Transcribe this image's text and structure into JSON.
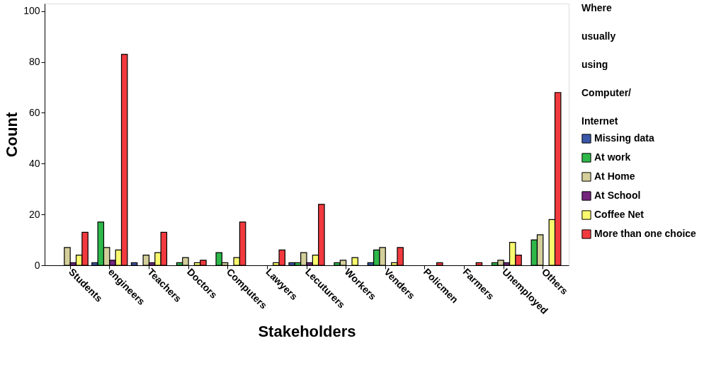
{
  "chart_data": {
    "type": "bar",
    "xlabel": "Stakeholders",
    "ylabel": "Count",
    "legend_title": "Where usually using Computer/ Internet",
    "categories": [
      "Students",
      "engineers",
      "Teachers",
      "Doctors",
      "Computers",
      "Lawyers",
      "Lecuturers",
      "Workers",
      "Venders",
      "Policmen",
      "Farmers",
      "Unemployed",
      "Others"
    ],
    "series": [
      {
        "name": "Missing data",
        "color": "#3a57a8",
        "values": [
          null,
          1,
          1,
          null,
          null,
          null,
          1,
          null,
          1,
          null,
          null,
          null,
          null
        ]
      },
      {
        "name": "At work",
        "color": "#2eb84a",
        "values": [
          null,
          17,
          null,
          1,
          5,
          null,
          1,
          1,
          6,
          null,
          null,
          1,
          10
        ]
      },
      {
        "name": "At Home",
        "color": "#d4cf9a",
        "values": [
          7,
          7,
          4,
          3,
          1,
          null,
          5,
          2,
          7,
          null,
          null,
          2,
          12
        ]
      },
      {
        "name": "At School",
        "color": "#74257e",
        "values": [
          1,
          2,
          1,
          null,
          null,
          null,
          1,
          null,
          null,
          null,
          null,
          1,
          null
        ]
      },
      {
        "name": "Coffee Net",
        "color": "#fafa6e",
        "values": [
          4,
          6,
          5,
          1,
          3,
          1,
          4,
          3,
          1,
          null,
          null,
          9,
          18
        ]
      },
      {
        "name": "More than one choice",
        "color": "#f23a3e",
        "values": [
          13,
          83,
          13,
          2,
          17,
          6,
          24,
          null,
          7,
          1,
          1,
          4,
          68
        ]
      }
    ],
    "ylim": [
      0,
      103
    ],
    "yticks": [
      0,
      20,
      40,
      60,
      80,
      100
    ],
    "grid": false,
    "legend": "right"
  }
}
